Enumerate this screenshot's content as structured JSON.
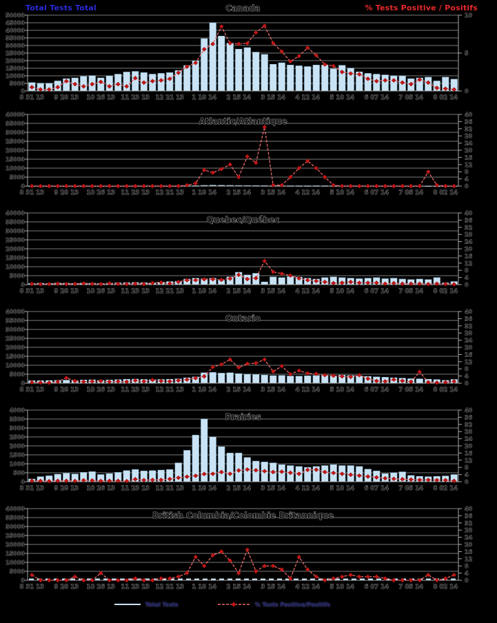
{
  "header": {
    "left_label": "Total Tests Total",
    "right_label": "% Tests Positive / Positifs"
  },
  "legend": {
    "items": [
      {
        "label": "Total Tests",
        "swatch": "light-blue-line"
      },
      {
        "label": "% Tests Positive/Positifs",
        "swatch": "red-dashed-diamond-line"
      }
    ]
  },
  "colors": {
    "background": "#000000",
    "bar_fill": "#c9e3f5",
    "bar_stroke": "#98c0da",
    "pct_line": "#e96a6a",
    "marker_fill": "#c41616",
    "marker_stroke": "#7e0e0e",
    "grid": "#7a7a7a",
    "axis": "#a9a9a9",
    "header_left": "#2a2ad8",
    "header_right": "#e82a2a"
  },
  "x_labels": [
    "8 31 13",
    "9 28 13",
    "10 26 13",
    "11 23 13",
    "12 21 13",
    "1 18 14",
    "2 15 14",
    "3 15 14",
    "4 12 14",
    "5 10 14",
    "6 07 14",
    "7 05 14",
    "8 02 14"
  ],
  "chart_data": [
    {
      "type": "bar+line",
      "title": "Canada",
      "left_axis": {
        "label": "Total Tests",
        "min": 0,
        "max": 50000,
        "step": 5000
      },
      "right_axis": {
        "label": "% Tests Positive",
        "min": 0,
        "max": 10,
        "label_step": 5
      },
      "bars": [
        5500,
        5100,
        5100,
        6600,
        8100,
        8600,
        9600,
        10100,
        8600,
        9900,
        11100,
        12500,
        12900,
        12100,
        11100,
        11600,
        12100,
        13500,
        16800,
        19800,
        34500,
        45000,
        36200,
        31600,
        27600,
        28600,
        25600,
        24100,
        17600,
        18600,
        17100,
        16600,
        16100,
        17100,
        17100,
        14600,
        16900,
        15100,
        12600,
        11600,
        11100,
        10600,
        10000,
        9900,
        8100,
        8600,
        9100,
        6600,
        9100,
        7800
      ],
      "pct_positive": [
        0.5,
        0.2,
        0.2,
        0.5,
        1.3,
        0.9,
        0.6,
        0.9,
        1.2,
        0.6,
        0.9,
        0.6,
        1.7,
        1.1,
        1.3,
        1.4,
        1.6,
        2.4,
        3.2,
        3.7,
        5.5,
        6.2,
        8.5,
        6.3,
        6.2,
        6.3,
        7.7,
        8.6,
        6.3,
        5.2,
        3.9,
        4.6,
        5.7,
        4.7,
        3.5,
        3.3,
        2.5,
        2.3,
        2.2,
        1.6,
        1.3,
        1.4,
        1.4,
        1.1,
        0.9,
        1.5,
        1.1,
        0.4,
        0.3,
        0.2
      ]
    },
    {
      "type": "bar+line",
      "title": "Atlantic/Atlantique",
      "left_axis": {
        "label": "Total Tests",
        "min": 0,
        "max": 40000,
        "step": 5000
      },
      "right_axis": {
        "label": "% Tests Positive",
        "min": 0,
        "max": 40,
        "label_step": 4
      },
      "bars": [
        80,
        60,
        70,
        90,
        80,
        70,
        90,
        80,
        70,
        90,
        100,
        110,
        120,
        110,
        100,
        120,
        130,
        150,
        200,
        250,
        400,
        500,
        450,
        400,
        350,
        300,
        280,
        250,
        200,
        220,
        200,
        180,
        180,
        200,
        200,
        150,
        180,
        160,
        130,
        120,
        110,
        100,
        100,
        90,
        80,
        90,
        90,
        70,
        90,
        80
      ],
      "pct_positive": [
        0,
        0,
        0,
        0,
        0,
        0,
        0,
        0,
        0,
        0,
        0,
        0,
        0,
        0,
        0,
        0,
        0,
        0,
        0.5,
        1.5,
        9,
        7.5,
        9.5,
        12,
        5,
        16.5,
        13,
        33,
        0.5,
        0.5,
        5,
        10,
        14,
        10,
        5,
        0.5,
        0,
        0,
        0,
        0,
        0,
        0,
        0,
        0,
        0,
        0,
        8,
        0.5,
        0,
        0
      ]
    },
    {
      "type": "bar+line",
      "title": "Quebec/Québec",
      "left_axis": {
        "label": "Total Tests",
        "min": 0,
        "max": 40000,
        "step": 5000
      },
      "right_axis": {
        "label": "% Tests Positive",
        "min": 0,
        "max": 40,
        "label_step": 4
      },
      "bars": [
        700,
        800,
        700,
        900,
        800,
        700,
        900,
        800,
        700,
        900,
        1000,
        1100,
        1200,
        1100,
        1000,
        1400,
        1700,
        1900,
        3100,
        3600,
        3300,
        3600,
        2400,
        4300,
        6900,
        5400,
        6300,
        1500,
        4300,
        3900,
        4500,
        4200,
        3600,
        3100,
        3900,
        4300,
        3900,
        3600,
        3300,
        3600,
        3900,
        3300,
        3600,
        3100,
        2800,
        3100,
        2800,
        3900,
        1000,
        1700
      ],
      "pct_positive": [
        0.4,
        0.2,
        0.3,
        0.5,
        0.3,
        0.4,
        0.7,
        0.4,
        0.3,
        0.7,
        0.4,
        0.3,
        0.5,
        0.3,
        0.9,
        1.2,
        0.6,
        1.5,
        2.5,
        2.5,
        3.0,
        3.0,
        2.7,
        3.3,
        5.5,
        3.1,
        3.6,
        13.2,
        7.1,
        6.1,
        5.1,
        3.5,
        2.5,
        2.0,
        1.5,
        0.8,
        1.0,
        1.5,
        1.0,
        1.0,
        1.0,
        0.5,
        0.8,
        0.5,
        0.5,
        0.5,
        0.3,
        0.5,
        0.3,
        0.2
      ]
    },
    {
      "type": "bar+line",
      "title": "Ontario",
      "left_axis": {
        "label": "Total Tests",
        "min": 0,
        "max": 40000,
        "step": 5000
      },
      "right_axis": {
        "label": "% Tests Positive",
        "min": 0,
        "max": 40,
        "label_step": 4
      },
      "bars": [
        1400,
        1400,
        1500,
        1600,
        1700,
        1500,
        1800,
        1900,
        1600,
        1800,
        2000,
        2200,
        2300,
        2100,
        2000,
        2100,
        2200,
        2400,
        3000,
        3500,
        5800,
        6000,
        5600,
        5800,
        5300,
        5000,
        4800,
        4500,
        4200,
        4300,
        4000,
        3900,
        4100,
        4300,
        4400,
        4000,
        4500,
        4300,
        4000,
        3800,
        3500,
        3300,
        3000,
        2800,
        2500,
        2400,
        2200,
        2000,
        1600,
        2100
      ],
      "pct_positive": [
        0.5,
        0.3,
        0.2,
        0.8,
        3.0,
        1.2,
        0.8,
        1.0,
        1.2,
        0.8,
        1.0,
        0.8,
        1.5,
        1.0,
        1.8,
        1.2,
        1.0,
        1.5,
        2.0,
        2.8,
        3.8,
        9.0,
        10.5,
        13.2,
        8.8,
        10.8,
        11.2,
        13.2,
        6.5,
        9.5,
        5.0,
        7.0,
        5.5,
        5.2,
        4.5,
        4.2,
        3.8,
        3.5,
        4.5,
        2.5,
        1.2,
        1.0,
        2.0,
        1.3,
        0.8,
        6.3,
        0.5,
        0.3,
        0.5,
        1.0
      ]
    },
    {
      "type": "bar+line",
      "title": "Prairies",
      "left_axis": {
        "label": "Total Tests",
        "min": 0,
        "max": 4000,
        "step": 500
      },
      "right_axis": {
        "label": "% Tests Positive",
        "min": 0,
        "max": 40,
        "label_step": 4
      },
      "bars": [
        150,
        280,
        330,
        420,
        470,
        430,
        520,
        560,
        400,
        450,
        520,
        620,
        680,
        600,
        620,
        650,
        680,
        1050,
        1750,
        2600,
        3500,
        2500,
        1950,
        1600,
        1600,
        1350,
        1150,
        1100,
        1050,
        950,
        900,
        850,
        800,
        850,
        900,
        950,
        900,
        900,
        850,
        700,
        600,
        450,
        500,
        550,
        350,
        300,
        280,
        300,
        320,
        400
      ],
      "pct_positive": [
        0.5,
        0.4,
        0.3,
        0.5,
        0.5,
        0.4,
        0.8,
        0.7,
        0.4,
        0.5,
        0.5,
        0.3,
        1.4,
        0.9,
        1.0,
        1.0,
        1.5,
        2.2,
        2.8,
        3.3,
        4.3,
        4.4,
        5.4,
        4.4,
        6.3,
        6.8,
        6.4,
        5.9,
        5.4,
        5.6,
        5.0,
        4.4,
        6.6,
        6.7,
        5.4,
        4.9,
        4.4,
        3.9,
        3.4,
        2.9,
        2.4,
        1.9,
        1.6,
        1.4,
        1.2,
        1.0,
        1.0,
        0.9,
        0.9,
        0.5
      ]
    },
    {
      "type": "bar+line",
      "title": "British Columbia/Colombie Britannique",
      "left_axis": {
        "label": "Total Tests",
        "min": 0,
        "max": 40000,
        "step": 5000
      },
      "right_axis": {
        "label": "% Tests Positive",
        "min": 0,
        "max": 40,
        "label_step": 4
      },
      "baseline_dashed": true,
      "bars": [
        0,
        0,
        0,
        0,
        0,
        0,
        0,
        0,
        0,
        0,
        0,
        0,
        0,
        0,
        0,
        0,
        0,
        0,
        0,
        0,
        0,
        0,
        0,
        0,
        0,
        0,
        0,
        0,
        0,
        0,
        0,
        0,
        0,
        0,
        0,
        0,
        0,
        0,
        0,
        0,
        0,
        0,
        0,
        0,
        0,
        0,
        0,
        0,
        0,
        0
      ],
      "pct_positive": [
        3,
        0,
        0,
        0,
        0,
        2,
        0,
        0,
        4,
        0,
        0,
        0,
        1,
        0,
        0,
        1,
        1,
        2,
        4,
        13,
        8,
        14,
        16,
        11,
        4,
        17,
        5,
        8,
        8,
        6,
        1,
        13,
        6,
        2,
        0,
        1,
        2,
        3,
        2,
        2,
        2,
        1,
        0,
        0,
        0,
        0,
        3,
        0,
        1,
        3
      ]
    }
  ]
}
